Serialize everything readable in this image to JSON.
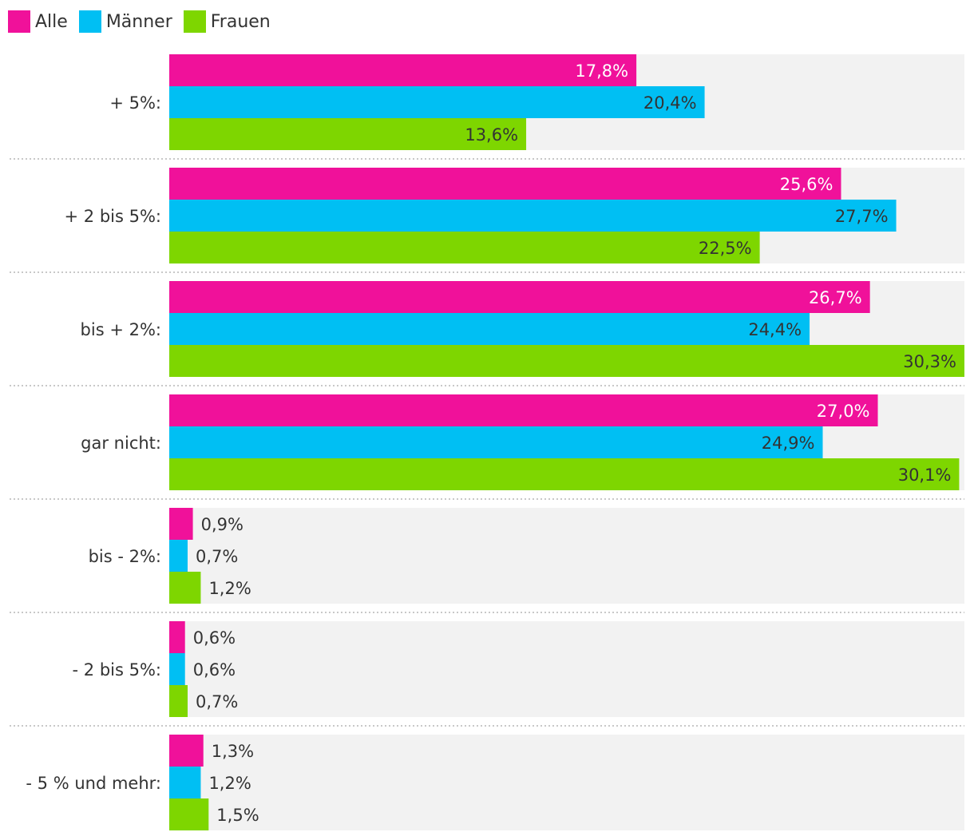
{
  "chart_data": {
    "type": "bar",
    "orientation": "horizontal",
    "categories": [
      "+ 5%:",
      "+ 2 bis 5%:",
      "bis + 2%:",
      "gar nicht:",
      "bis - 2%:",
      "- 2 bis 5%:",
      "- 5 % und mehr:"
    ],
    "series": [
      {
        "name": "Alle",
        "color": "#f0119a",
        "values": [
          17.8,
          25.6,
          26.7,
          27.0,
          0.9,
          0.6,
          1.3
        ],
        "labels": [
          "17,8%",
          "25,6%",
          "26,7%",
          "27,0%",
          "0,9%",
          "0,6%",
          "1,3%"
        ]
      },
      {
        "name": "Männer",
        "color": "#00bff3",
        "values": [
          20.4,
          27.7,
          24.4,
          24.9,
          0.7,
          0.6,
          1.2
        ],
        "labels": [
          "20,4%",
          "27,7%",
          "24,4%",
          "24,9%",
          "0,7%",
          "0,6%",
          "1,2%"
        ]
      },
      {
        "name": "Frauen",
        "color": "#7ed600",
        "values": [
          13.6,
          22.5,
          30.3,
          30.1,
          1.2,
          0.7,
          1.5
        ],
        "labels": [
          "13,6%",
          "22,5%",
          "30,3%",
          "30,1%",
          "1,2%",
          "0,7%",
          "1,5%"
        ]
      }
    ],
    "xlim": [
      0,
      30.3
    ],
    "legend_position": "top-left",
    "grid": false,
    "row_background": "#f2f2f2"
  }
}
